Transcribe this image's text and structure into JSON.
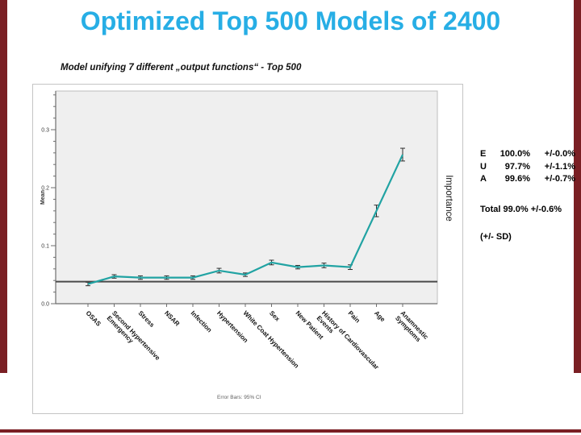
{
  "slide": {
    "title": "Optimized Top 500 Models of 2400",
    "subtitle": "Model unifying 7 different „output functions“  -  Top 500"
  },
  "colors": {
    "title": "#27aee5",
    "accent_bar": "#7a1f24",
    "line": "#21a3a3",
    "plot_bg": "#efefef",
    "reference_line": "#4a4a4a"
  },
  "stats": {
    "rows": [
      {
        "label": "E",
        "value": "100.0%",
        "sd": "+/-0.0%"
      },
      {
        "label": "U",
        "value": "97.7%",
        "sd": "+/-1.1%"
      },
      {
        "label": "A",
        "value": "99.6%",
        "sd": "+/-0.7%"
      }
    ],
    "total_text": "Total 99.0% +/-0.6%",
    "sd_note": "(+/- SD)"
  },
  "chart_data": {
    "type": "line",
    "title": "",
    "xlabel": "",
    "ylabel": "Mean",
    "right_label": "Importance",
    "footnote": "Error Bars: 95% CI",
    "categories": [
      "OSAS",
      "Second Hypertensive\nEmergency",
      "Stress",
      "NSAR",
      "Infection",
      "Hypertension",
      "White Coat Hypertension",
      "Sex",
      "New Patient",
      "History of Cardiovascular\nEvents",
      "Pain",
      "Age",
      "Anamnestic\nSymptoms"
    ],
    "values": [
      0.034,
      0.047,
      0.045,
      0.045,
      0.045,
      0.057,
      0.05,
      0.071,
      0.063,
      0.066,
      0.063,
      0.16,
      0.257
    ],
    "errors": [
      0.003,
      0.003,
      0.003,
      0.003,
      0.003,
      0.004,
      0.003,
      0.004,
      0.003,
      0.004,
      0.004,
      0.01,
      0.011
    ],
    "reference_line": 0.038,
    "ylim": [
      0.0,
      0.3
    ],
    "ytick_step": 0.1,
    "yminor_step": 0.02,
    "grid": false,
    "legend": "none"
  }
}
